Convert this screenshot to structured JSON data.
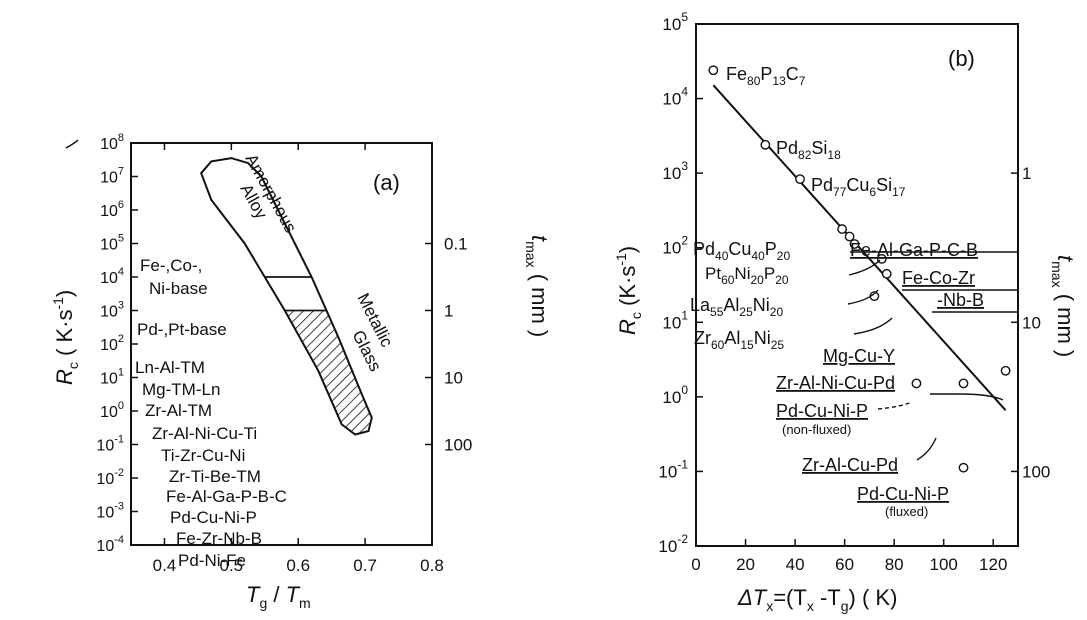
{
  "chart_data": [
    {
      "panel": "(a)",
      "type": "scatter",
      "ylabel": "R_c ( K·s^-1 )",
      "ylabel_parts": {
        "sym": "R",
        "sub": "c",
        "unit": "( K·s",
        "sup": "-1",
        "close": ")"
      },
      "xlabel": "T_g / T_m",
      "xlabel_parts": {
        "sym1": "T",
        "sub1": "g",
        "sep": " / ",
        "sym2": "T",
        "sub2": "m"
      },
      "y2label": "t_max ( mm )",
      "y2label_parts": {
        "sym": "t",
        "sub": "max",
        "unit": "( mm )"
      },
      "xlim": [
        0.35,
        0.8
      ],
      "ylim_log10": [
        -4,
        8
      ],
      "x_ticks": [
        "0.4",
        "0.5",
        "0.6",
        "0.7",
        "0.8"
      ],
      "x_tick_values": [
        0.4,
        0.5,
        0.6,
        0.7,
        0.8
      ],
      "y_ticks": [
        {
          "exp": 8,
          "base": "10",
          "sup": "8"
        },
        {
          "exp": 7,
          "base": "10",
          "sup": "7"
        },
        {
          "exp": 6,
          "base": "10",
          "sup": "6"
        },
        {
          "exp": 5,
          "base": "10",
          "sup": "5"
        },
        {
          "exp": 4,
          "base": "10",
          "sup": "4"
        },
        {
          "exp": 3,
          "base": "10",
          "sup": "3"
        },
        {
          "exp": 2,
          "base": "10",
          "sup": "2"
        },
        {
          "exp": 1,
          "base": "10",
          "sup": "1"
        },
        {
          "exp": 0,
          "base": "10",
          "sup": "0"
        },
        {
          "exp": -1,
          "base": "10",
          "sup": "-1"
        },
        {
          "exp": -2,
          "base": "10",
          "sup": "-2"
        },
        {
          "exp": -3,
          "base": "10",
          "sup": "-3"
        },
        {
          "exp": -4,
          "base": "10",
          "sup": "-4"
        }
      ],
      "y2_ticks": [
        {
          "label": "0.1",
          "log10_rc": 5
        },
        {
          "label": "1",
          "log10_rc": 3
        },
        {
          "label": "10",
          "log10_rc": 1
        },
        {
          "label": "100",
          "log10_rc": -1
        }
      ],
      "region_labels": {
        "amorphous_line1": "Amorphous",
        "amorphous_line2": "Alloy",
        "metallic_line1": "Metallic",
        "metallic_line2": "Glass"
      },
      "alloy_systems": [
        "Fe-,Co-,",
        "Ni-base",
        "Pd-,Pt-base",
        "Ln-Al-TM",
        "Mg-TM-Ln",
        "Zr-Al-TM",
        "Zr-Al-Ni-Cu-Ti",
        "Ti-Zr-Cu-Ni",
        "Zr-Ti-Be-TM",
        "Fe-Al-Ga-P-B-C",
        "Pd-Cu-Ni-P",
        "Fe-Zr-Nb-B",
        "Pd-Ni-Fe"
      ],
      "band_boundaries_log10_rc": [
        4,
        3
      ],
      "envelope_description": "closed loop from Tg/Tm≈0.45,Rc≈1e7 to Tg/Tm≈0.70,Rc≈1e-0.5; hatched below Rc=1e3"
    },
    {
      "panel": "(b)",
      "type": "scatter",
      "ylabel_parts": {
        "sym": "R",
        "sub": "c",
        "unit": "(K·s",
        "sup": "-1",
        "close": ")"
      },
      "xlabel_parts": {
        "pre": "ΔT",
        "sub1": "x",
        "mid": "=(T",
        "sub2": "x",
        "mid2": " -T",
        "sub3": "g",
        "close": ") ( K)"
      },
      "y2label_parts": {
        "sym": "t",
        "sub": "max",
        "unit": "( mm )"
      },
      "xlim": [
        0,
        130
      ],
      "ylim_log10": [
        -2,
        5
      ],
      "x_ticks": [
        "0",
        "20",
        "40",
        "60",
        "80",
        "100",
        "120"
      ],
      "x_tick_values": [
        0,
        20,
        40,
        60,
        80,
        100,
        120
      ],
      "y_ticks": [
        {
          "exp": 5,
          "base": "10",
          "sup": "5"
        },
        {
          "exp": 4,
          "base": "10",
          "sup": "4"
        },
        {
          "exp": 3,
          "base": "10",
          "sup": "3"
        },
        {
          "exp": 2,
          "base": "10",
          "sup": "2"
        },
        {
          "exp": 1,
          "base": "10",
          "sup": "1"
        },
        {
          "exp": 0,
          "base": "10",
          "sup": "0"
        },
        {
          "exp": -1,
          "base": "10",
          "sup": "-1"
        },
        {
          "exp": -2,
          "base": "10",
          "sup": "-2"
        }
      ],
      "y2_ticks": [
        {
          "label": "1",
          "log10_rc": 3
        },
        {
          "label": "10",
          "log10_rc": 1
        },
        {
          "label": "100",
          "log10_rc": -1
        }
      ],
      "points": [
        {
          "x": 7,
          "log10_rc": 4.38,
          "parts": [
            [
              "Fe",
              "80"
            ],
            [
              "P",
              "13"
            ],
            [
              "C",
              "7"
            ]
          ]
        },
        {
          "x": 28,
          "log10_rc": 3.38,
          "parts": [
            [
              "Pd",
              "82"
            ],
            [
              "Si",
              "18"
            ]
          ]
        },
        {
          "x": 42,
          "log10_rc": 2.92,
          "parts": [
            [
              "Pd",
              "77"
            ],
            [
              "Cu",
              "6"
            ],
            [
              "Si",
              "17"
            ]
          ]
        },
        {
          "x": 59,
          "log10_rc": 2.25,
          "parts": [
            [
              "Pd",
              "40"
            ],
            [
              "Cu",
              "40"
            ],
            [
              "P",
              "20"
            ]
          ]
        },
        {
          "x": 62,
          "log10_rc": 2.15
        },
        {
          "x": 64,
          "log10_rc": 2.05,
          "parts": [
            [
              "Pt",
              "60"
            ],
            [
              "Ni",
              "20"
            ],
            [
              "P",
              "20"
            ]
          ]
        },
        {
          "x": 75,
          "log10_rc": 1.85
        },
        {
          "x": 77,
          "log10_rc": 1.65,
          "parts": [
            [
              "La",
              "55"
            ],
            [
              "Al",
              "25"
            ],
            [
              "Ni",
              "20"
            ]
          ]
        },
        {
          "x": 72,
          "log10_rc": 1.35,
          "parts": [
            [
              "Zr",
              "60"
            ],
            [
              "Al",
              "15"
            ],
            [
              "Ni",
              "25"
            ]
          ]
        },
        {
          "x": 125,
          "log10_rc": 0.35
        },
        {
          "x": 89,
          "log10_rc": 0.18
        },
        {
          "x": 108,
          "log10_rc": 0.18
        },
        {
          "x": 108,
          "log10_rc": -0.95
        }
      ],
      "fit_line": {
        "x": [
          7,
          125
        ],
        "log10_rc": [
          4.18,
          -0.18
        ]
      },
      "labels": {
        "panel": "(b)",
        "fe_al": "Fe-Al-Ga-P-C-B",
        "fe_co_1": "Fe-Co-Zr",
        "fe_co_2": "-Nb-B",
        "mg": "Mg-Cu-Y",
        "zr_al_ni": "Zr-Al-Ni-Cu-Pd",
        "pd_nonfluxed": "Pd-Cu-Ni-P",
        "nonfluxed": "(non-fluxed)",
        "zr_al_cu": "Zr-Al-Cu-Pd",
        "pd_fluxed": "Pd-Cu-Ni-P",
        "fluxed": "(fluxed)"
      }
    }
  ]
}
